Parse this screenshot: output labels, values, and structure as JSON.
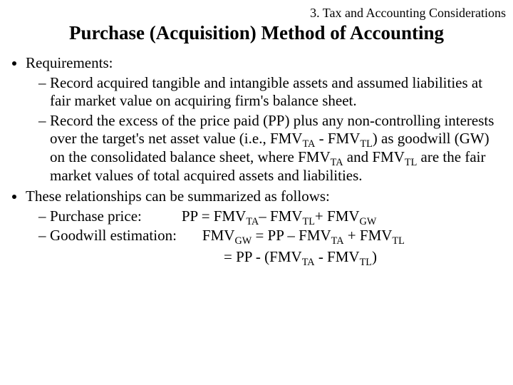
{
  "header": "3. Tax and Accounting Considerations",
  "title": "Purchase (Acquisition) Method of Accounting",
  "bullets": {
    "req_label": "Requirements:",
    "req1": "Record acquired tangible and intangible assets and assumed liabilities at fair market value on acquiring firm's balance sheet.",
    "req2_pre": "Record the excess of the price paid (PP) plus any non-controlling interests over the target's net asset value (i.e., FMV",
    "req2_mid1": " - FMV",
    "req2_mid2": ") as goodwill (GW) on the consolidated balance sheet, where FMV",
    "req2_mid3": " and FMV",
    "req2_post": " are the fair market values of total acquired assets and liabilities.",
    "summ_label": "These relationships can be summarized as follows:",
    "pp_label": "Purchase price:",
    "pp_eq_pre": "PP = FMV",
    "pp_eq_mid1": "– FMV",
    "pp_eq_mid2": "+ FMV",
    "gw_label": "Goodwill estimation:",
    "gw_eq_pre": "FMV",
    "gw_eq_mid1": " = PP – FMV",
    "gw_eq_mid2": " + FMV",
    "gw2_pre": "= PP - (FMV",
    "gw2_mid": " - FMV",
    "gw2_post": ")"
  },
  "sub": {
    "TA": "TA",
    "TL": "TL",
    "GW": "GW"
  }
}
